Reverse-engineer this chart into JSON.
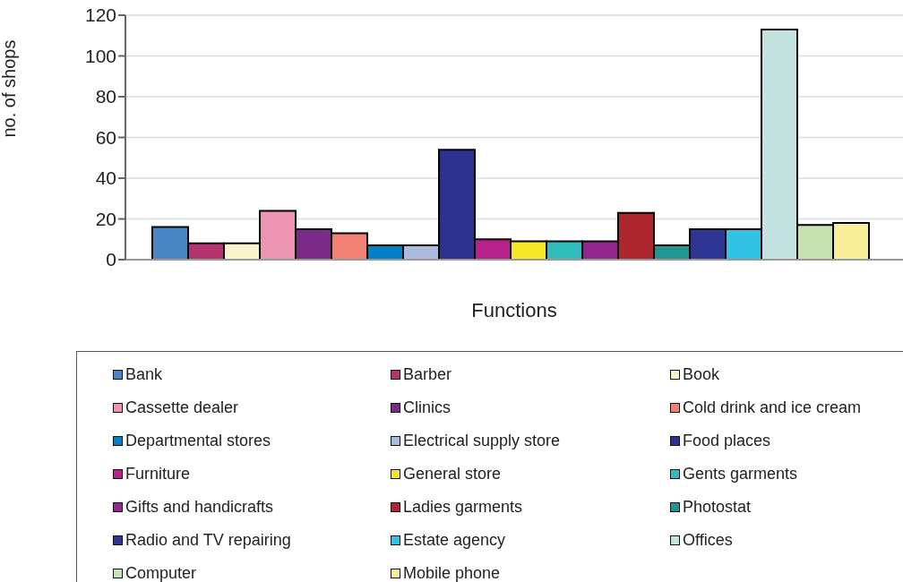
{
  "chart_data": {
    "type": "bar",
    "xlabel": "Functions",
    "ylabel": "no. of shops",
    "categories": [
      null
    ],
    "ylim": [
      0,
      120
    ],
    "yticks": [
      0,
      20,
      40,
      60,
      80,
      100,
      120
    ],
    "grid": "y",
    "legend": "bottom",
    "series": [
      {
        "name": "Bank",
        "color": "#4a86c5",
        "values": [
          16
        ]
      },
      {
        "name": "Barber",
        "color": "#b53371",
        "values": [
          8
        ]
      },
      {
        "name": "Book",
        "color": "#f8f3cc",
        "values": [
          8
        ]
      },
      {
        "name": "Cassette dealer",
        "color": "#ec94b2",
        "values": [
          24
        ]
      },
      {
        "name": "Clinics",
        "color": "#7b2a8a",
        "values": [
          15
        ]
      },
      {
        "name": "Cold drink and ice cream",
        "color": "#f28074",
        "values": [
          13
        ]
      },
      {
        "name": "Departmental stores",
        "color": "#0080c6",
        "values": [
          7
        ]
      },
      {
        "name": "Electrical supply store",
        "color": "#aabbdd",
        "values": [
          7
        ]
      },
      {
        "name": "Food places",
        "color": "#2e3190",
        "values": [
          54
        ]
      },
      {
        "name": "Furniture",
        "color": "#b6218b",
        "values": [
          10
        ]
      },
      {
        "name": "General store",
        "color": "#f7e72a",
        "values": [
          9
        ]
      },
      {
        "name": "Gents garments",
        "color": "#30bcb8",
        "values": [
          9
        ]
      },
      {
        "name": "Gifts and handicrafts",
        "color": "#93278f",
        "values": [
          9
        ]
      },
      {
        "name": "Ladies garments",
        "color": "#ad262e",
        "values": [
          23
        ]
      },
      {
        "name": "Photostat",
        "color": "#21958f",
        "values": [
          7
        ]
      },
      {
        "name": "Radio and TV repairing",
        "color": "#2e3594",
        "values": [
          15
        ]
      },
      {
        "name": "Estate agency",
        "color": "#31c2e6",
        "values": [
          15
        ]
      },
      {
        "name": "Offices",
        "color": "#c4e2e0",
        "values": [
          113
        ]
      },
      {
        "name": "Computer",
        "color": "#c8e2b4",
        "values": [
          17
        ]
      },
      {
        "name": "Mobile phone",
        "color": "#f9ef98",
        "values": [
          18
        ]
      }
    ]
  }
}
